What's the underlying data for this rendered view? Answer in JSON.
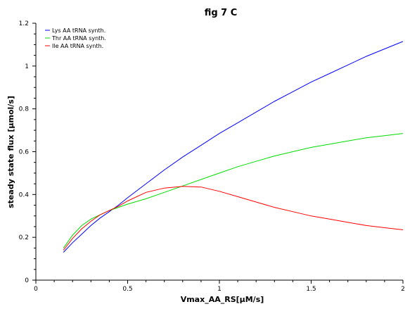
{
  "chart_data": {
    "type": "line",
    "title": "fig 7 C",
    "xlabel": "Vmax_AA_RS[µM/s]",
    "ylabel": "steady state flux [µmol/s]",
    "xlim": [
      0,
      2
    ],
    "ylim": [
      0,
      1.2
    ],
    "xticks": [
      "0",
      "0.5",
      "1",
      "1.5",
      "2"
    ],
    "yticks": [
      "0",
      "0.2",
      "0.4",
      "0.6",
      "0.8",
      "1",
      "1.2"
    ],
    "grid": false,
    "legend_position": "top-left",
    "x": [
      0.15,
      0.2,
      0.25,
      0.3,
      0.35,
      0.4,
      0.45,
      0.5,
      0.6,
      0.7,
      0.8,
      0.9,
      1.0,
      1.1,
      1.2,
      1.3,
      1.4,
      1.5,
      1.6,
      1.7,
      1.8,
      1.9,
      2.0
    ],
    "series": [
      {
        "name": "Lys AA tRNA synth.",
        "color": "#0000ff",
        "values": [
          0.13,
          0.175,
          0.215,
          0.255,
          0.29,
          0.32,
          0.35,
          0.385,
          0.45,
          0.515,
          0.575,
          0.63,
          0.685,
          0.735,
          0.785,
          0.835,
          0.88,
          0.925,
          0.965,
          1.005,
          1.045,
          1.08,
          1.115
        ]
      },
      {
        "name": "Thr AA tRNA synth.",
        "color": "#00dd00",
        "values": [
          0.15,
          0.21,
          0.255,
          0.285,
          0.305,
          0.325,
          0.34,
          0.355,
          0.38,
          0.41,
          0.44,
          0.47,
          0.5,
          0.53,
          0.555,
          0.58,
          0.6,
          0.62,
          0.635,
          0.65,
          0.665,
          0.675,
          0.685
        ]
      },
      {
        "name": "Ile AA tRNA synth.",
        "color": "#ff0000",
        "values": [
          0.14,
          0.195,
          0.24,
          0.275,
          0.305,
          0.325,
          0.345,
          0.37,
          0.41,
          0.43,
          0.438,
          0.435,
          0.415,
          0.39,
          0.365,
          0.34,
          0.32,
          0.3,
          0.285,
          0.27,
          0.255,
          0.245,
          0.235
        ]
      }
    ]
  }
}
